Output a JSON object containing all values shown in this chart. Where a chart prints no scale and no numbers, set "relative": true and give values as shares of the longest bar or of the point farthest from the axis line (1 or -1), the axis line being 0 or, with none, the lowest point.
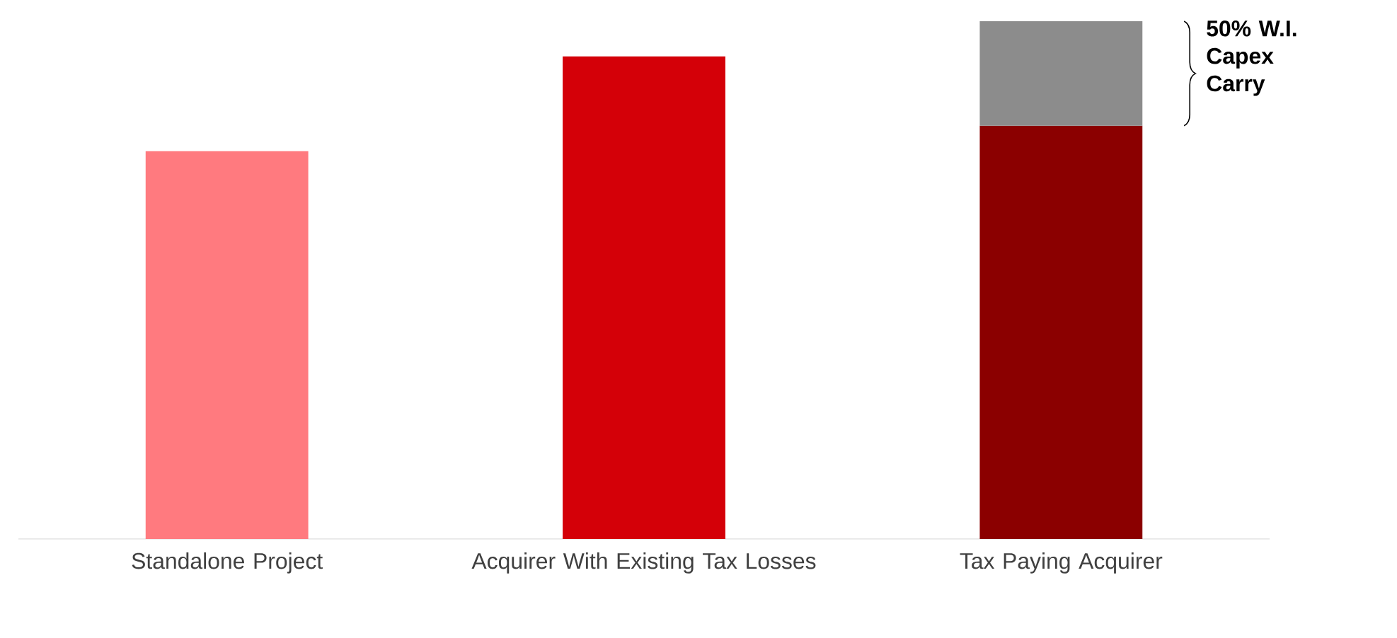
{
  "chart_data": {
    "type": "bar",
    "stacked": true,
    "relative": true,
    "categories": [
      "Standalone Project",
      "Acquirer With Existing Tax Losses",
      "Tax Paying Acquirer"
    ],
    "series": [
      {
        "colors": [
          "#ff7a7f",
          "#d40008",
          "#8b0000"
        ],
        "values": [
          0.749,
          0.932,
          0.798
        ]
      },
      {
        "color": "#8c8c8c",
        "values": [
          null,
          null,
          0.202
        ]
      }
    ],
    "annotations": [
      "50% W.I. Capex Carry"
    ]
  }
}
